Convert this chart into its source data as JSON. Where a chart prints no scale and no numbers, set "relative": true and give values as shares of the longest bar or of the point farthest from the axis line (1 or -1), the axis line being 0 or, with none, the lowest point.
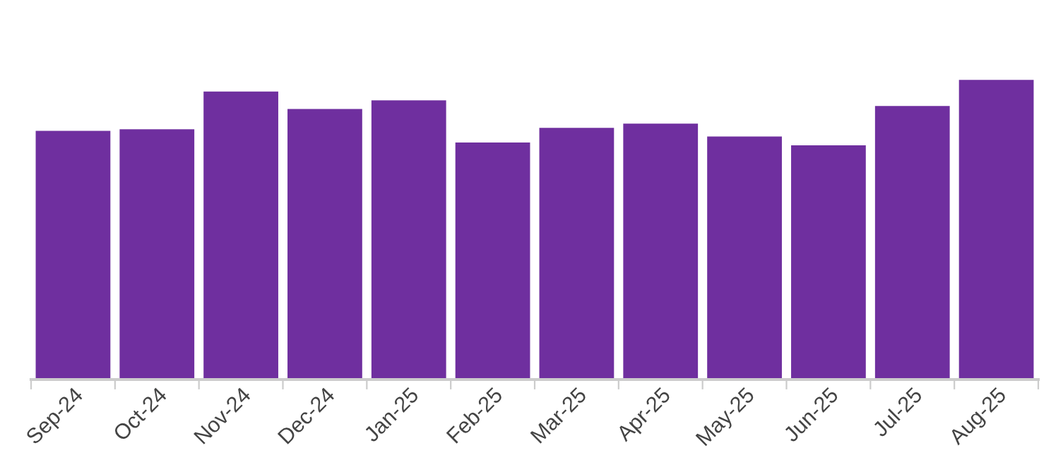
{
  "chart_data": {
    "type": "bar",
    "relative": true,
    "color": "#6f2f9f",
    "grid": false,
    "legend": false,
    "categories": [
      "Sep-24",
      "Oct-24",
      "Nov-24",
      "Dec-24",
      "Jan-25",
      "Feb-25",
      "Mar-25",
      "Apr-25",
      "May-25",
      "Jun-25",
      "Jul-25",
      "Aug-25"
    ],
    "values": [
      0.83,
      0.835,
      0.961,
      0.903,
      0.932,
      0.791,
      0.84,
      0.854,
      0.811,
      0.782,
      0.913,
      1
    ]
  }
}
